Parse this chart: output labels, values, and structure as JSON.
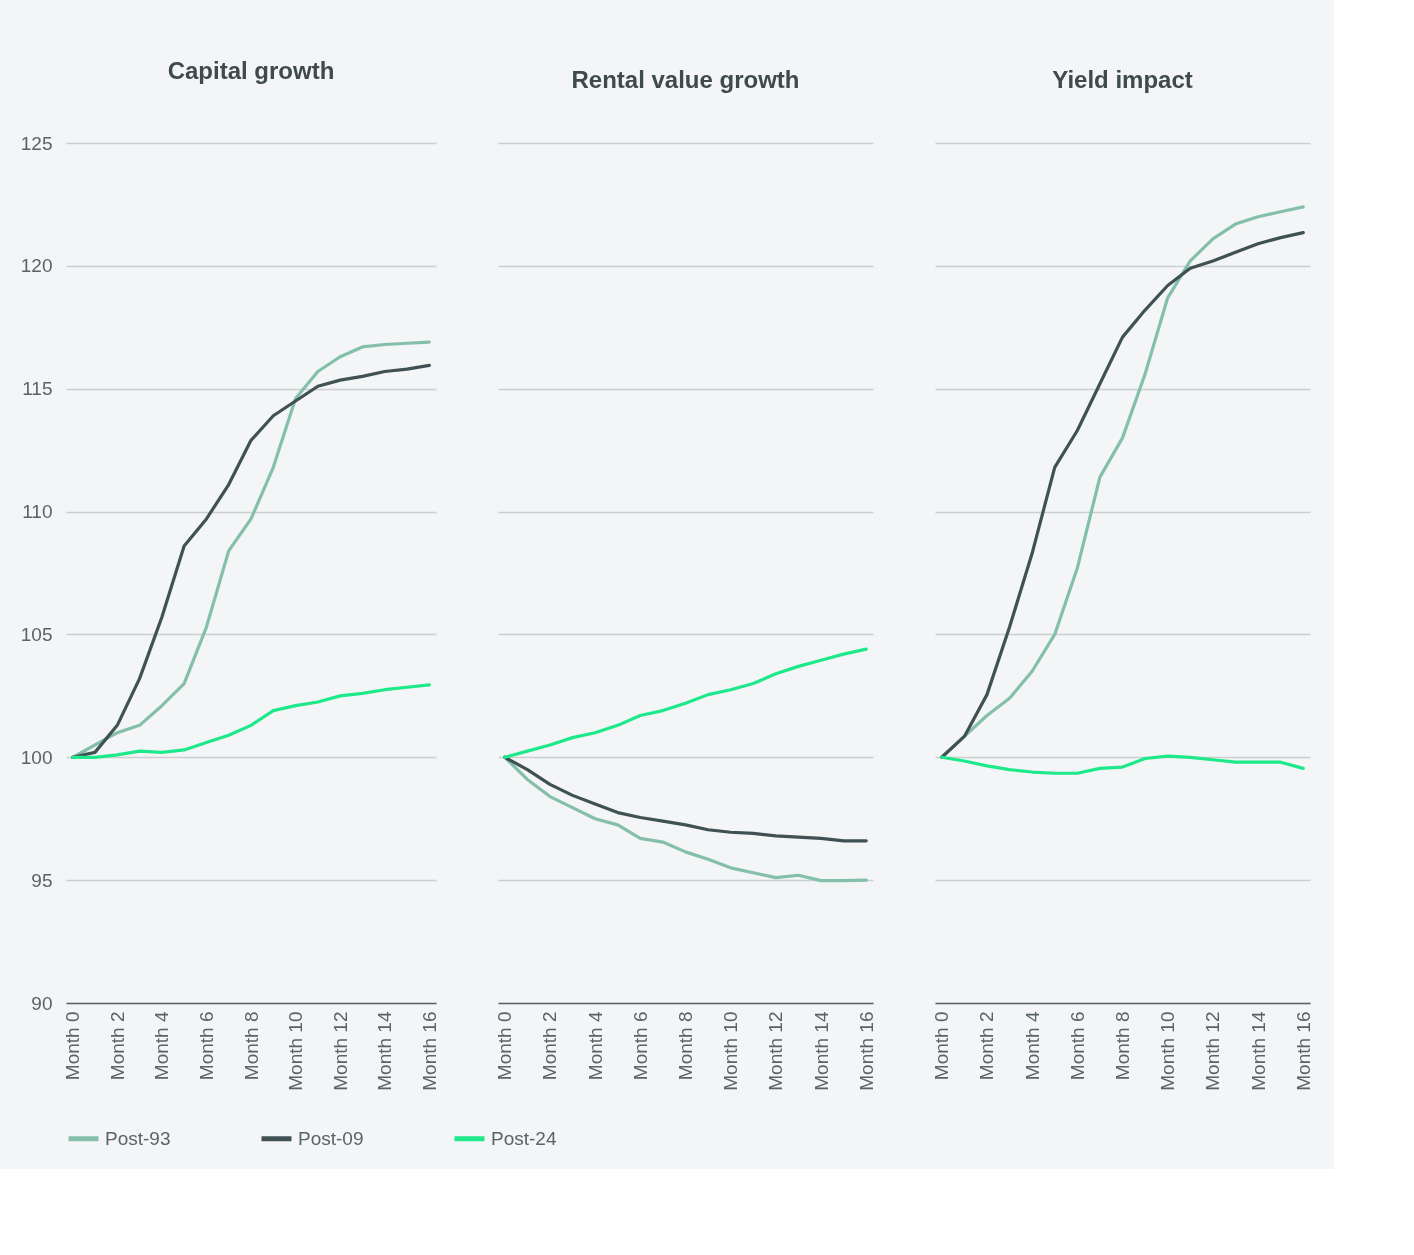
{
  "chart_data": [
    {
      "type": "line",
      "title": "Capital growth",
      "categories": [
        "Month 0",
        null,
        "Month 2",
        null,
        "Month 4",
        null,
        "Month 6",
        null,
        "Month 8",
        null,
        "Month 10",
        null,
        "Month 12",
        null,
        "Month 14",
        null,
        "Month 16"
      ],
      "ylim": [
        90,
        125
      ],
      "yticks": [
        90,
        95,
        100,
        105,
        110,
        115,
        120,
        125
      ],
      "grid": "y",
      "legend": "bottom",
      "series": [
        {
          "name": "Post-93",
          "color": "#84bfaa",
          "values": [
            100,
            100.5,
            101.0,
            101.3,
            102.1,
            103.0,
            105.3,
            108.4,
            109.7,
            111.8,
            114.6,
            115.7,
            116.3,
            116.7,
            116.8,
            116.85,
            116.9
          ]
        },
        {
          "name": "Post-09",
          "color": "#3f5152",
          "values": [
            100,
            100.2,
            101.3,
            103.2,
            105.7,
            108.6,
            109.7,
            111.1,
            112.9,
            113.9,
            114.5,
            115.1,
            115.35,
            115.5,
            115.7,
            115.8,
            115.95
          ]
        },
        {
          "name": "Post-24",
          "color": "#1de98b",
          "values": [
            100,
            100.0,
            100.1,
            100.25,
            100.2,
            100.3,
            100.6,
            100.9,
            101.3,
            101.9,
            102.1,
            102.25,
            102.5,
            102.6,
            102.75,
            102.85,
            102.95
          ]
        }
      ]
    },
    {
      "type": "line",
      "title": "Rental value growth",
      "categories": [
        "Month 0",
        null,
        "Month 2",
        null,
        "Month 4",
        null,
        "Month 6",
        null,
        "Month 8",
        null,
        "Month 10",
        null,
        "Month 12",
        null,
        "Month 14",
        null,
        "Month 16"
      ],
      "ylim": [
        90,
        125
      ],
      "yticks": [
        90,
        95,
        100,
        105,
        110,
        115,
        120,
        125
      ],
      "grid": "y",
      "legend": "bottom",
      "tick_labels": "x",
      "series": [
        {
          "name": "Post-93",
          "color": "#84bfaa",
          "values": [
            100,
            99.1,
            98.4,
            97.95,
            97.5,
            97.25,
            96.7,
            96.55,
            96.15,
            95.85,
            95.5,
            95.3,
            95.1,
            95.2,
            94.98,
            94.98,
            95.0
          ]
        },
        {
          "name": "Post-09",
          "color": "#3f5152",
          "values": [
            100,
            99.5,
            98.9,
            98.45,
            98.1,
            97.75,
            97.55,
            97.4,
            97.25,
            97.05,
            96.95,
            96.9,
            96.8,
            96.75,
            96.7,
            96.6,
            96.6
          ]
        },
        {
          "name": "Post-24",
          "color": "#1de98b",
          "values": [
            100,
            100.25,
            100.5,
            100.8,
            101.0,
            101.3,
            101.7,
            101.9,
            102.2,
            102.55,
            102.75,
            103.0,
            103.4,
            103.7,
            103.95,
            104.2,
            104.4
          ]
        }
      ]
    },
    {
      "type": "line",
      "title": "Yield impact",
      "categories": [
        "Month 0",
        null,
        "Month 2",
        null,
        "Month 4",
        null,
        "Month 6",
        null,
        "Month 8",
        null,
        "Month 10",
        null,
        "Month 12",
        null,
        "Month 14",
        null,
        "Month 16"
      ],
      "ylim": [
        90,
        125
      ],
      "yticks": [
        90,
        95,
        100,
        105,
        110,
        115,
        120,
        125
      ],
      "grid": "y",
      "legend": "bottom",
      "tick_labels": "x",
      "series": [
        {
          "name": "Post-93",
          "color": "#84bfaa",
          "values": [
            100,
            100.85,
            101.7,
            102.4,
            103.5,
            105.0,
            107.7,
            111.4,
            113.0,
            115.6,
            118.7,
            120.2,
            121.1,
            121.7,
            122.0,
            122.2,
            122.4
          ]
        },
        {
          "name": "Post-09",
          "color": "#3f5152",
          "values": [
            100,
            100.85,
            102.55,
            105.3,
            108.3,
            111.8,
            113.3,
            115.2,
            117.1,
            118.2,
            119.2,
            119.9,
            120.2,
            120.55,
            120.9,
            121.15,
            121.35
          ]
        },
        {
          "name": "Post-24",
          "color": "#1de98b",
          "values": [
            100,
            99.85,
            99.65,
            99.5,
            99.4,
            99.35,
            99.35,
            99.55,
            99.6,
            99.95,
            100.05,
            100.0,
            99.9,
            99.8,
            99.8,
            99.8,
            99.55
          ]
        }
      ]
    }
  ]
}
